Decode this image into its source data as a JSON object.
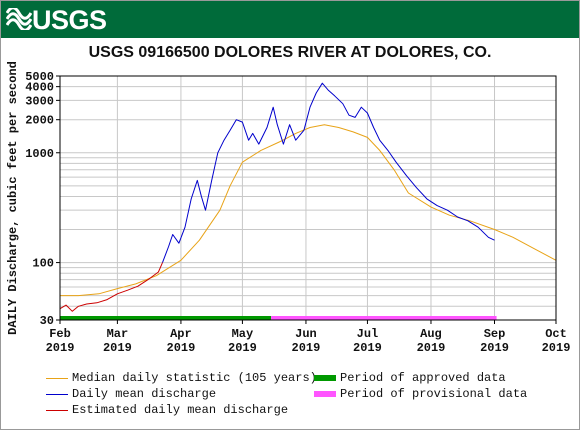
{
  "header": {
    "agency": "USGS"
  },
  "chart_data": {
    "type": "line",
    "title": "USGS 09166500 DOLORES RIVER AT DOLORES, CO.",
    "ylabel": "DAILY Discharge, cubic feet per second",
    "xlabel": "",
    "y_scale": "log",
    "ylim": [
      30,
      5000
    ],
    "xlim": [
      "2019-02-01",
      "2019-10-01"
    ],
    "y_ticks": [
      30,
      100,
      1000,
      2000,
      3000,
      4000,
      5000
    ],
    "x_ticks": [
      {
        "date": "2019-02-01",
        "month": "Feb",
        "year": "2019"
      },
      {
        "date": "2019-03-01",
        "month": "Mar",
        "year": "2019"
      },
      {
        "date": "2019-04-01",
        "month": "Apr",
        "year": "2019"
      },
      {
        "date": "2019-05-01",
        "month": "May",
        "year": "2019"
      },
      {
        "date": "2019-06-01",
        "month": "Jun",
        "year": "2019"
      },
      {
        "date": "2019-07-01",
        "month": "Jul",
        "year": "2019"
      },
      {
        "date": "2019-08-01",
        "month": "Aug",
        "year": "2019"
      },
      {
        "date": "2019-09-01",
        "month": "Sep",
        "year": "2019"
      },
      {
        "date": "2019-10-01",
        "month": "Oct",
        "year": "2019"
      }
    ],
    "grid": true,
    "series": [
      {
        "name": "Median daily statistic (105 years)",
        "color": "#e8a317",
        "points": [
          [
            "2019-02-01",
            50
          ],
          [
            "2019-02-10",
            50
          ],
          [
            "2019-02-20",
            52
          ],
          [
            "2019-03-01",
            58
          ],
          [
            "2019-03-10",
            64
          ],
          [
            "2019-03-20",
            76
          ],
          [
            "2019-04-01",
            105
          ],
          [
            "2019-04-10",
            160
          ],
          [
            "2019-04-20",
            300
          ],
          [
            "2019-04-25",
            500
          ],
          [
            "2019-05-01",
            820
          ],
          [
            "2019-05-10",
            1050
          ],
          [
            "2019-05-20",
            1280
          ],
          [
            "2019-05-27",
            1500
          ],
          [
            "2019-06-03",
            1700
          ],
          [
            "2019-06-10",
            1800
          ],
          [
            "2019-06-17",
            1700
          ],
          [
            "2019-06-24",
            1550
          ],
          [
            "2019-07-01",
            1380
          ],
          [
            "2019-07-07",
            1050
          ],
          [
            "2019-07-14",
            700
          ],
          [
            "2019-07-21",
            430
          ],
          [
            "2019-08-01",
            320
          ],
          [
            "2019-08-10",
            270
          ],
          [
            "2019-08-20",
            240
          ],
          [
            "2019-09-01",
            200
          ],
          [
            "2019-09-10",
            170
          ],
          [
            "2019-09-20",
            135
          ],
          [
            "2019-10-01",
            105
          ]
        ]
      },
      {
        "name": "Daily mean discharge",
        "color": "#0000cc",
        "points": [
          [
            "2019-03-23",
            100
          ],
          [
            "2019-03-26",
            140
          ],
          [
            "2019-03-28",
            180
          ],
          [
            "2019-03-31",
            150
          ],
          [
            "2019-04-03",
            210
          ],
          [
            "2019-04-06",
            380
          ],
          [
            "2019-04-09",
            560
          ],
          [
            "2019-04-11",
            400
          ],
          [
            "2019-04-13",
            300
          ],
          [
            "2019-04-16",
            560
          ],
          [
            "2019-04-19",
            1000
          ],
          [
            "2019-04-22",
            1300
          ],
          [
            "2019-04-25",
            1600
          ],
          [
            "2019-04-28",
            2000
          ],
          [
            "2019-05-01",
            1900
          ],
          [
            "2019-05-04",
            1300
          ],
          [
            "2019-05-06",
            1500
          ],
          [
            "2019-05-09",
            1200
          ],
          [
            "2019-05-13",
            1700
          ],
          [
            "2019-05-16",
            2600
          ],
          [
            "2019-05-18",
            1800
          ],
          [
            "2019-05-21",
            1200
          ],
          [
            "2019-05-24",
            1800
          ],
          [
            "2019-05-27",
            1300
          ],
          [
            "2019-05-31",
            1600
          ],
          [
            "2019-06-03",
            2600
          ],
          [
            "2019-06-06",
            3500
          ],
          [
            "2019-06-09",
            4300
          ],
          [
            "2019-06-12",
            3700
          ],
          [
            "2019-06-15",
            3300
          ],
          [
            "2019-06-19",
            2800
          ],
          [
            "2019-06-22",
            2200
          ],
          [
            "2019-06-25",
            2100
          ],
          [
            "2019-06-28",
            2600
          ],
          [
            "2019-07-01",
            2300
          ],
          [
            "2019-07-04",
            1700
          ],
          [
            "2019-07-07",
            1300
          ],
          [
            "2019-07-11",
            1050
          ],
          [
            "2019-07-15",
            820
          ],
          [
            "2019-07-20",
            620
          ],
          [
            "2019-07-25",
            480
          ],
          [
            "2019-07-30",
            380
          ],
          [
            "2019-08-04",
            330
          ],
          [
            "2019-08-09",
            300
          ],
          [
            "2019-08-14",
            260
          ],
          [
            "2019-08-19",
            240
          ],
          [
            "2019-08-24",
            210
          ],
          [
            "2019-08-29",
            170
          ],
          [
            "2019-09-01",
            160
          ]
        ]
      },
      {
        "name": "Estimated daily mean discharge",
        "color": "#cc0000",
        "points": [
          [
            "2019-02-01",
            38
          ],
          [
            "2019-02-04",
            41
          ],
          [
            "2019-02-07",
            36
          ],
          [
            "2019-02-10",
            40
          ],
          [
            "2019-02-14",
            42
          ],
          [
            "2019-02-19",
            43
          ],
          [
            "2019-02-24",
            46
          ],
          [
            "2019-03-01",
            52
          ],
          [
            "2019-03-06",
            56
          ],
          [
            "2019-03-11",
            61
          ],
          [
            "2019-03-16",
            70
          ],
          [
            "2019-03-21",
            82
          ],
          [
            "2019-03-23",
            100
          ]
        ]
      }
    ],
    "periods": [
      {
        "name": "Period of approved data",
        "color": "#009900",
        "start": "2019-02-01",
        "end": "2019-05-15"
      },
      {
        "name": "Period of provisional data",
        "color": "#ff55ff",
        "start": "2019-05-15",
        "end": "2019-09-02"
      }
    ]
  }
}
